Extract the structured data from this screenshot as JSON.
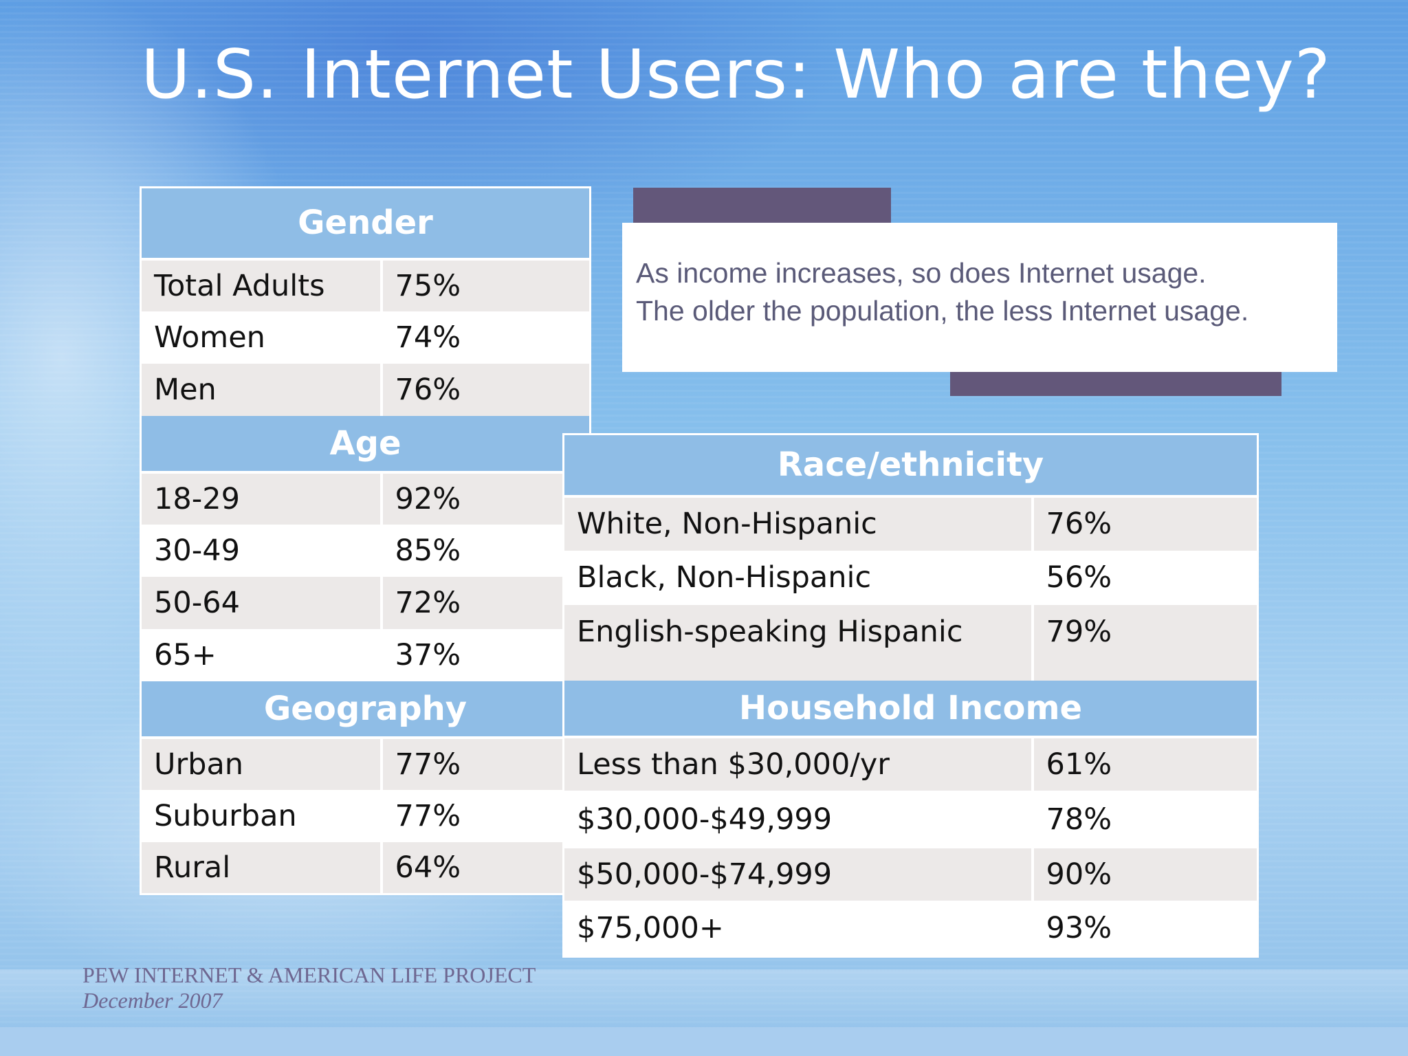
{
  "slide": {
    "title": "U.S. Internet Users: Who are they?",
    "callout": {
      "line1": "As income increases, so does Internet usage.",
      "line2": "The older the population, the less Internet usage."
    },
    "footer": {
      "organization": "PEW INTERNET & AMERICAN LIFE PROJECT",
      "date": "December 2007"
    }
  },
  "tables": {
    "gender": {
      "header": "Gender",
      "rows": [
        {
          "label": "Total Adults",
          "value": "75%"
        },
        {
          "label": "Women",
          "value": "74%"
        },
        {
          "label": "Men",
          "value": "76%"
        }
      ]
    },
    "age": {
      "header": "Age",
      "rows": [
        {
          "label": "18-29",
          "value": "92%"
        },
        {
          "label": "30-49",
          "value": "85%"
        },
        {
          "label": "50-64",
          "value": "72%"
        },
        {
          "label": "65+",
          "value": "37%"
        }
      ]
    },
    "geography": {
      "header": "Geography",
      "rows": [
        {
          "label": "Urban",
          "value": "77%"
        },
        {
          "label": "Suburban",
          "value": "77%"
        },
        {
          "label": "Rural",
          "value": "64%"
        }
      ]
    },
    "race": {
      "header": "Race/ethnicity",
      "rows": [
        {
          "label": "White, Non-Hispanic",
          "value": "76%"
        },
        {
          "label": "Black, Non-Hispanic",
          "value": "56%"
        },
        {
          "label": "English-speaking Hispanic",
          "value": "79%"
        }
      ]
    },
    "income": {
      "header": "Household Income",
      "rows": [
        {
          "label": "Less than $30,000/yr",
          "value": "61%"
        },
        {
          "label": "$30,000-$49,999",
          "value": "78%"
        },
        {
          "label": "$50,000-$74,999",
          "value": "90%"
        },
        {
          "label": "$75,000+",
          "value": "93%"
        }
      ]
    }
  },
  "colors": {
    "header_fill": "#8fbde6",
    "row_shade": "#ece9e8",
    "callout_bar": "#63577a",
    "callout_text": "#5a5a78",
    "footer_text": "#6e6791"
  }
}
